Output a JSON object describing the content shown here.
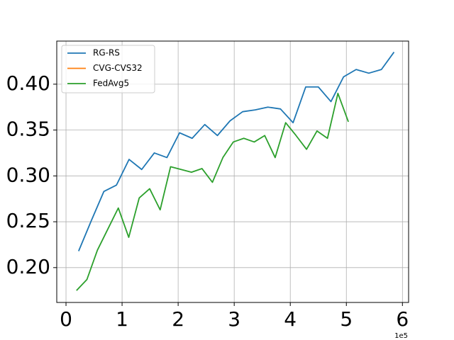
{
  "chart_data": {
    "type": "line",
    "x_offset_label": "1e5",
    "xlim": [
      -0.165,
      6.11
    ],
    "ylim": [
      0.162,
      0.447
    ],
    "xticks": [
      0,
      1,
      2,
      3,
      4,
      5,
      6
    ],
    "yticks": [
      {
        "value": 0.2,
        "label": "0.20"
      },
      {
        "value": 0.25,
        "label": "0.25"
      },
      {
        "value": 0.3,
        "label": "0.30"
      },
      {
        "value": 0.35,
        "label": "0.35"
      },
      {
        "value": 0.4,
        "label": "0.40"
      }
    ],
    "grid": true,
    "legend": "upper left",
    "series": [
      {
        "name": "RG-RS",
        "color": "#1f77b4",
        "x": [
          0.225,
          0.45,
          0.675,
          0.9,
          1.125,
          1.35,
          1.575,
          1.8,
          2.025,
          2.25,
          2.475,
          2.7,
          2.925,
          3.15,
          3.375,
          3.6,
          3.825,
          4.05,
          4.275,
          4.5,
          4.725,
          4.95,
          5.175,
          5.4,
          5.625,
          5.85
        ],
        "values": [
          0.218,
          0.251,
          0.283,
          0.29,
          0.318,
          0.307,
          0.325,
          0.32,
          0.347,
          0.341,
          0.356,
          0.344,
          0.36,
          0.37,
          0.372,
          0.375,
          0.373,
          0.358,
          0.397,
          0.397,
          0.381,
          0.408,
          0.416,
          0.412,
          0.416,
          0.435
        ]
      },
      {
        "name": "CVG-CVS32",
        "color": "#ff7f0e",
        "x": [],
        "values": []
      },
      {
        "name": "FedAvg5",
        "color": "#2ca02c",
        "x": [
          0.187,
          0.373,
          0.56,
          0.746,
          0.933,
          1.119,
          1.306,
          1.492,
          1.679,
          1.865,
          2.052,
          2.238,
          2.425,
          2.611,
          2.798,
          2.984,
          3.171,
          3.357,
          3.544,
          3.73,
          3.917,
          4.103,
          4.29,
          4.476,
          4.663,
          4.849,
          5.036
        ],
        "values": [
          0.175,
          0.187,
          0.219,
          0.242,
          0.265,
          0.233,
          0.276,
          0.286,
          0.263,
          0.31,
          0.307,
          0.304,
          0.308,
          0.293,
          0.32,
          0.337,
          0.341,
          0.337,
          0.344,
          0.32,
          0.358,
          0.344,
          0.329,
          0.349,
          0.341,
          0.39,
          0.359
        ]
      }
    ]
  }
}
